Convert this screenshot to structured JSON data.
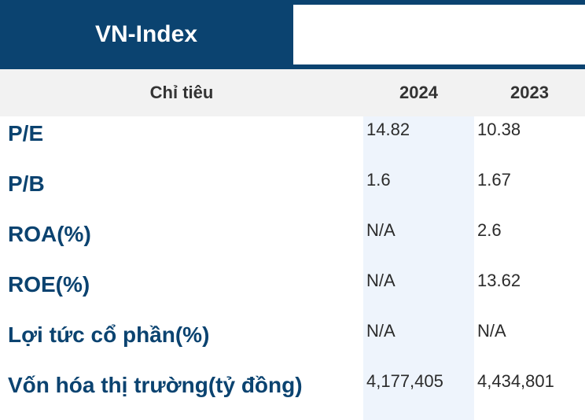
{
  "header": {
    "title": "VN-Index"
  },
  "columns": {
    "metric": "Chỉ tiêu",
    "year1": "2024",
    "year2": "2023"
  },
  "rows": [
    {
      "label": "P/E",
      "v2024": "14.82",
      "v2023": "10.38"
    },
    {
      "label": "P/B",
      "v2024": "1.6",
      "v2023": "1.67"
    },
    {
      "label": "ROA(%)",
      "v2024": "N/A",
      "v2023": "2.6"
    },
    {
      "label": "ROE(%)",
      "v2024": "N/A",
      "v2023": "13.62"
    },
    {
      "label": "Lợi tức cổ phần(%)",
      "v2024": "N/A",
      "v2023": "N/A"
    },
    {
      "label": "Vốn hóa thị trường(tỷ đồng)",
      "v2024": "4,177,405",
      "v2023": "4,434,801"
    }
  ],
  "colors": {
    "brand": "#0b4370",
    "header_row_bg": "#f2f2f2",
    "highlight_column": "#eef4fc"
  }
}
